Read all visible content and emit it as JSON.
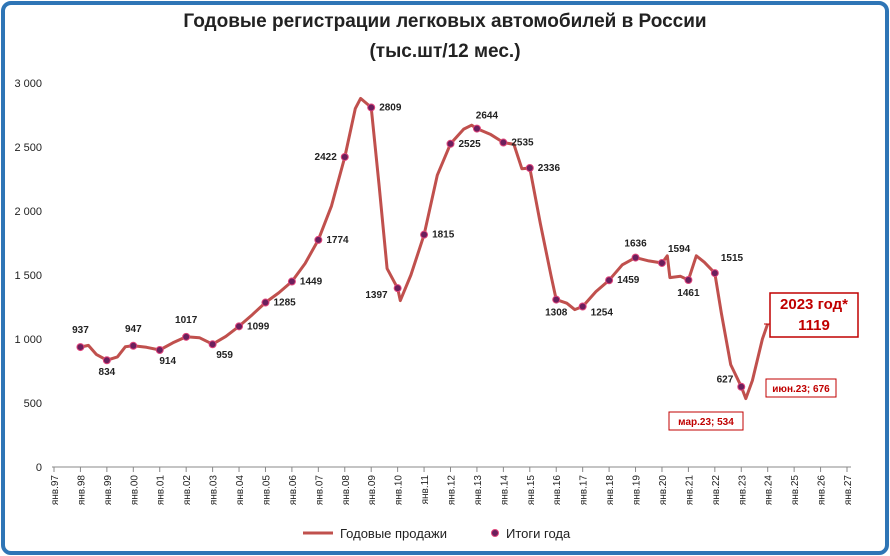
{
  "chart_data": {
    "type": "line",
    "title": "Годовые регистрации легковых автомобилей в России",
    "subtitle": "(тыс.шт/12 мес.)",
    "xlim": [
      1997,
      2027
    ],
    "xticks": [
      {
        "value": 1997,
        "label": "янв.97"
      },
      {
        "value": 1998,
        "label": "янв.98"
      },
      {
        "value": 1999,
        "label": "янв.99"
      },
      {
        "value": 2000,
        "label": "янв.00"
      },
      {
        "value": 2001,
        "label": "янв.01"
      },
      {
        "value": 2002,
        "label": "янв.02"
      },
      {
        "value": 2003,
        "label": "янв.03"
      },
      {
        "value": 2004,
        "label": "янв.04"
      },
      {
        "value": 2005,
        "label": "янв.05"
      },
      {
        "value": 2006,
        "label": "янв.06"
      },
      {
        "value": 2007,
        "label": "янв.07"
      },
      {
        "value": 2008,
        "label": "янв.08"
      },
      {
        "value": 2009,
        "label": "янв.09"
      },
      {
        "value": 2010,
        "label": "янв.10"
      },
      {
        "value": 2011,
        "label": "янв.11"
      },
      {
        "value": 2012,
        "label": "янв.12"
      },
      {
        "value": 2013,
        "label": "янв.13"
      },
      {
        "value": 2014,
        "label": "янв.14"
      },
      {
        "value": 2015,
        "label": "янв.15"
      },
      {
        "value": 2016,
        "label": "янв.16"
      },
      {
        "value": 2017,
        "label": "янв.17"
      },
      {
        "value": 2018,
        "label": "янв.18"
      },
      {
        "value": 2019,
        "label": "янв.19"
      },
      {
        "value": 2020,
        "label": "янв.20"
      },
      {
        "value": 2021,
        "label": "янв.21"
      },
      {
        "value": 2022,
        "label": "янв.22"
      },
      {
        "value": 2023,
        "label": "янв.23"
      },
      {
        "value": 2024,
        "label": "янв.24"
      },
      {
        "value": 2025,
        "label": "янв.25"
      },
      {
        "value": 2026,
        "label": "янв.26"
      },
      {
        "value": 2027,
        "label": "янв.27"
      }
    ],
    "ylim": [
      0,
      3000
    ],
    "yticks": [
      0,
      500,
      {
        "value": 1000,
        "label": "1 000"
      },
      {
        "value": 1500,
        "label": "1 500"
      },
      {
        "value": 2000,
        "label": "2 000"
      },
      {
        "value": 2500,
        "label": "2 500"
      },
      {
        "value": 3000,
        "label": "3 000"
      }
    ],
    "grid": false,
    "series": [
      {
        "name": "Годовые продажи",
        "color": "#c0504d",
        "kind": "line",
        "x": [
          1998,
          1998.3,
          1998.6,
          1999,
          1999.4,
          1999.7,
          2000,
          2000.5,
          2001,
          2001.5,
          2002,
          2002.5,
          2003,
          2003.5,
          2004,
          2004.5,
          2005,
          2005.5,
          2006,
          2006.5,
          2007,
          2007.5,
          2008,
          2008.4,
          2008.6,
          2009,
          2009.3,
          2009.6,
          2010,
          2010.1,
          2010.5,
          2011,
          2011.5,
          2012,
          2012.5,
          2012.8,
          2013,
          2013.5,
          2014,
          2014.4,
          2014.7,
          2015,
          2015.4,
          2015.8,
          2016,
          2016.4,
          2016.7,
          2017,
          2017.5,
          2018,
          2018.5,
          2019,
          2019.5,
          2020,
          2020.2,
          2020.3,
          2020.7,
          2021,
          2021.3,
          2021.6,
          2022,
          2022.25,
          2022.6,
          2023,
          2023.17,
          2023.42,
          2023.8,
          2024
        ],
        "values": [
          937,
          950,
          880,
          834,
          860,
          940,
          947,
          935,
          914,
          970,
          1017,
          1010,
          959,
          1020,
          1099,
          1190,
          1285,
          1360,
          1449,
          1590,
          1774,
          2040,
          2422,
          2800,
          2880,
          2809,
          2200,
          1550,
          1397,
          1300,
          1500,
          1815,
          2280,
          2525,
          2640,
          2670,
          2644,
          2600,
          2535,
          2520,
          2330,
          2336,
          1900,
          1500,
          1308,
          1280,
          1230,
          1254,
          1370,
          1459,
          1580,
          1636,
          1610,
          1594,
          1650,
          1480,
          1490,
          1461,
          1650,
          1600,
          1515,
          1200,
          800,
          627,
          534,
          676,
          1000,
          1119
        ]
      },
      {
        "name": "Итоги года",
        "color": "#6b1f5c",
        "kind": "marker",
        "x": [
          1998,
          1999,
          2000,
          2001,
          2002,
          2003,
          2004,
          2005,
          2006,
          2007,
          2008,
          2009,
          2010,
          2011,
          2012,
          2013,
          2014,
          2015,
          2016,
          2017,
          2018,
          2019,
          2020,
          2021,
          2022,
          2023
        ],
        "values": [
          937,
          834,
          947,
          914,
          1017,
          959,
          1099,
          1285,
          1449,
          1774,
          2422,
          2809,
          1397,
          1815,
          2525,
          2644,
          2535,
          2336,
          1308,
          1254,
          1459,
          1636,
          1594,
          1461,
          1515,
          627
        ]
      }
    ],
    "annotations": [
      "2023 год*",
      "1119",
      "июн.23; 676",
      "мар.23; 534"
    ]
  }
}
